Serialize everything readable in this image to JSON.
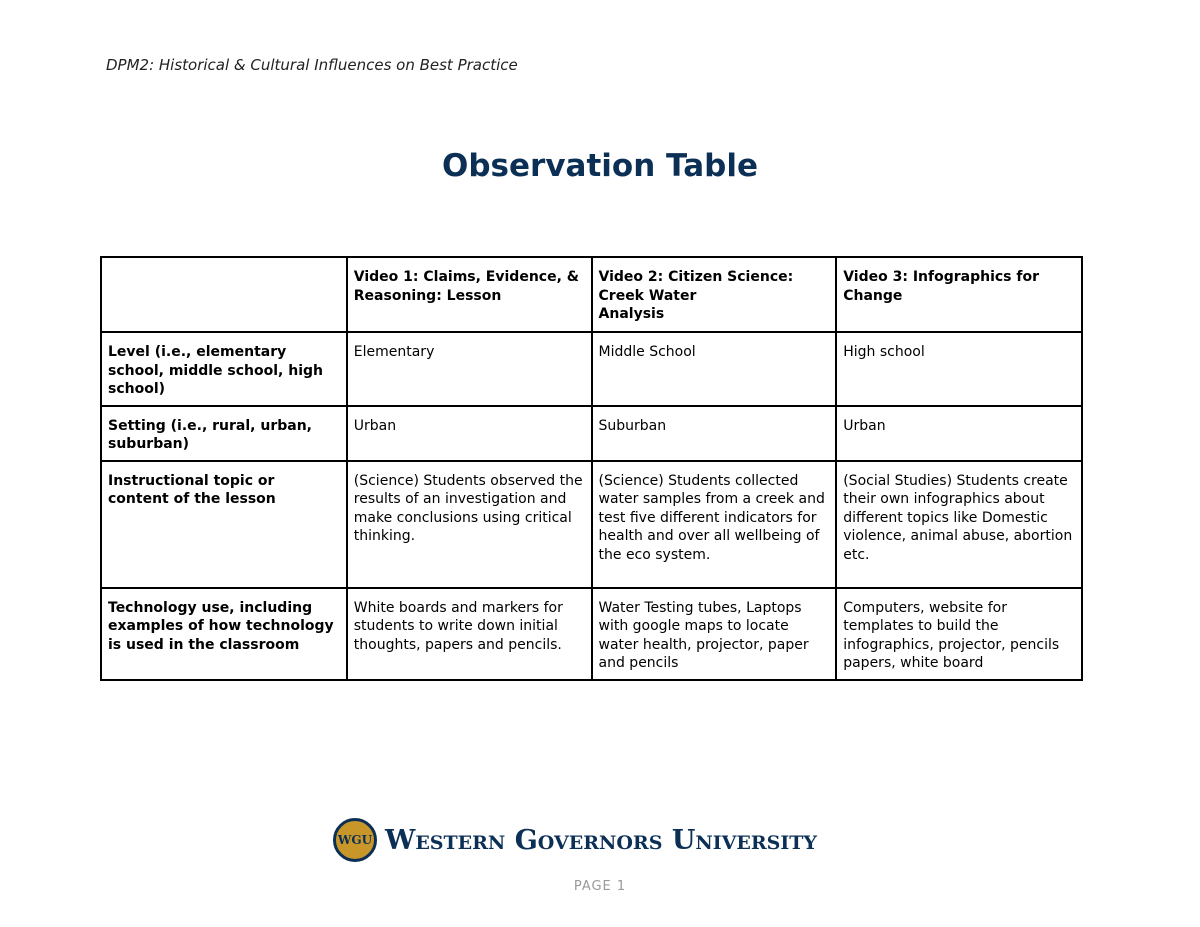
{
  "header": "DPM2: Historical & Cultural Influences on Best Practice",
  "title": "Observation Table",
  "table": {
    "columns": [
      "",
      "Video 1: Claims, Evidence, & Reasoning: Lesson",
      "Video 2: Citizen Science: Creek Water\nAnalysis",
      "Video 3: Infographics for Change"
    ],
    "rows": [
      [
        "Level (i.e., elementary school, middle school, high school)",
        "Elementary",
        "Middle School",
        "High school"
      ],
      [
        "Setting (i.e., rural, urban, suburban)",
        "Urban",
        "Suburban",
        "Urban"
      ],
      [
        "Instructional topic or content of the lesson",
        "(Science) Students observed the results of an investigation and make conclusions using critical thinking.",
        "(Science) Students collected water samples from a creek and test five different indicators for health and over all wellbeing of the eco system.",
        "(Social Studies) Students create their own infographics about different topics like Domestic violence, animal abuse, abortion etc."
      ],
      [
        "Technology use, including examples of how technology is used in the classroom",
        "White boards and markers for students to write down initial thoughts, papers and pencils.",
        "Water Testing tubes, Laptops with google maps to locate water health, projector, paper and pencils",
        "Computers, website for templates to build the infographics, projector, pencils papers, white board"
      ]
    ]
  },
  "footer": {
    "logo_seal": "WGU",
    "logo_text": "Western Governors University",
    "page": "PAGE 1"
  },
  "colors": {
    "title": "#0b2f55",
    "seal": "#c9962a"
  }
}
